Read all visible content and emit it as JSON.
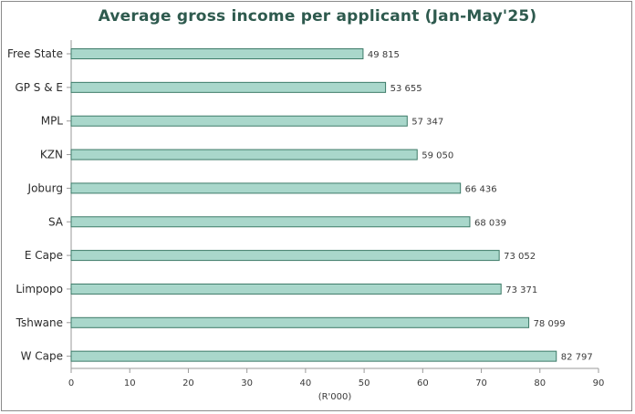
{
  "chart_data": {
    "type": "bar",
    "orientation": "horizontal",
    "title": "Average gross income per applicant (Jan-May'25)",
    "xlabel": "(R'000)",
    "ylabel": "",
    "categories": [
      "Free State",
      "GP S & E",
      "MPL",
      "KZN",
      "Joburg",
      "SA",
      "E Cape",
      "Limpopo",
      "Tshwane",
      "W Cape"
    ],
    "values": [
      49.815,
      53.655,
      57.347,
      59.05,
      66.436,
      68.039,
      73.052,
      73.371,
      78.099,
      82.797
    ],
    "value_labels": [
      "49 815",
      "53 655",
      "57 347",
      "59 050",
      "66 436",
      "68 039",
      "73 052",
      "73 371",
      "78 099",
      "82 797"
    ],
    "xlim": [
      0,
      90
    ],
    "xticks": [
      "0",
      "10",
      "20",
      "30",
      "40",
      "50",
      "60",
      "70",
      "80",
      "90"
    ],
    "grid": false,
    "colors": {
      "bar_fill": "#a9d7cb",
      "bar_stroke": "#3d7a68",
      "title": "#2e5a4e",
      "axis": "#9a9a9a"
    }
  }
}
